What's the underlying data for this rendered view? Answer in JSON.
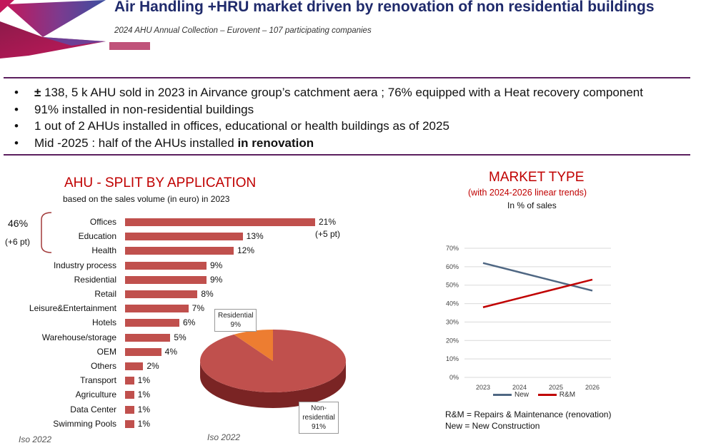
{
  "header": {
    "title": "Air Handling +HRU market driven by renovation of non residential buildings",
    "subtitle": "2024 AHU Annual Collection – Eurovent – 107 participating companies"
  },
  "bullets": [
    {
      "bold": "± ",
      "text": "138, 5 k AHU sold in 2023 in Airvance group’s catchment aera ; 76% equipped with a Heat recovery component"
    },
    {
      "bold": "",
      "text": "91% installed in non-residential buildings"
    },
    {
      "bold": "",
      "text": "1 out of 2 AHUs installed in offices, educational or health buildings as of 2025"
    },
    {
      "bold": "",
      "text": "Mid -2025 : half of the AHUs installed ",
      "bold_suffix": "in renovation"
    }
  ],
  "split": {
    "title": "AHU - SPLIT BY APPLICATION",
    "subtitle": "based on the sales volume (in euro) in 2023",
    "group_pct": "46%",
    "group_delta": "(+6 pt)",
    "offices_delta": "(+5 pt)",
    "source": "Iso 2022"
  },
  "market": {
    "title": "MARKET TYPE",
    "subtitle": "(with 2024-2026 linear trends)",
    "unit": "In % of sales",
    "note1": "R&M = Repairs & Maintenance (renovation)",
    "note2": "New = New Construction"
  },
  "pie_source": "Iso 2022",
  "colors": {
    "title": "#1f2a6b",
    "bar": "#c0504d",
    "new": "#4f6783",
    "rm": "#c00000",
    "pie_main": "#c0504d",
    "pie_res": "#ed7d31",
    "rule": "#5b1f5e"
  },
  "chart_data": [
    {
      "type": "bar",
      "orientation": "horizontal",
      "title": "AHU - SPLIT BY APPLICATION",
      "categories": [
        "Offices",
        "Education",
        "Health",
        "Industry process",
        "Residential",
        "Retail",
        "Leisure&Entertainment",
        "Hotels",
        "Warehouse/storage",
        "OEM",
        "Others",
        "Transport",
        "Agriculture",
        "Data Center",
        "Swimming Pools"
      ],
      "values": [
        21,
        13,
        12,
        9,
        9,
        8,
        7,
        6,
        5,
        4,
        2,
        1,
        1,
        1,
        1
      ],
      "labels": [
        "21%",
        "13%",
        "12%",
        "9%",
        "9%",
        "8%",
        "7%",
        "6%",
        "5%",
        "4%",
        "2%",
        "1%",
        "1%",
        "1%",
        "1%"
      ]
    },
    {
      "type": "pie",
      "slices": [
        {
          "label": "Residential",
          "value": 9,
          "text": "9%"
        },
        {
          "label": "Non-residential",
          "value": 91,
          "text": "91%"
        }
      ]
    },
    {
      "type": "line",
      "title": "MARKET TYPE",
      "x": [
        "2023",
        "2024",
        "2025",
        "2026"
      ],
      "ylim": [
        0,
        70
      ],
      "yticks": [
        "0%",
        "10%",
        "20%",
        "30%",
        "40%",
        "50%",
        "60%",
        "70%"
      ],
      "series": [
        {
          "name": "New",
          "values": [
            62,
            57,
            52,
            47
          ]
        },
        {
          "name": "R&M",
          "values": [
            38,
            43,
            48,
            53
          ]
        }
      ],
      "grid": true,
      "legend": "bottom"
    }
  ]
}
